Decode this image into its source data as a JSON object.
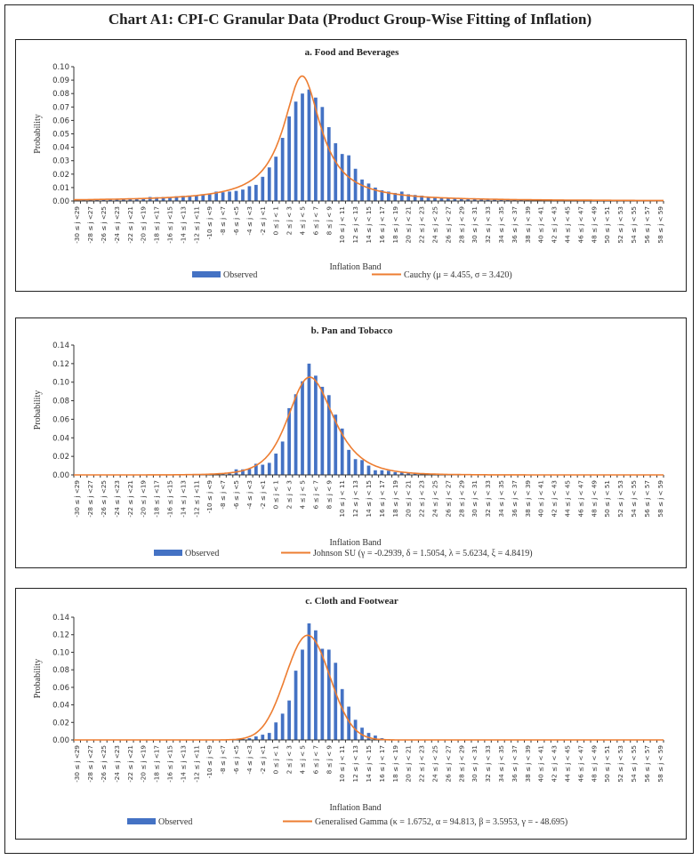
{
  "title": "Chart A1: CPI-C Granular Data (Product Group-Wise Fitting of Inflation)",
  "colors": {
    "bar": "#4472C4",
    "line": "#ED7D31",
    "border": "#222222"
  },
  "chart_data": [
    {
      "type": "bar",
      "title": "a. Food and Beverages",
      "xlabel": "Inflation Band",
      "ylabel": "Probability",
      "ylim": [
        0,
        0.1
      ],
      "yticks": [
        "0.00",
        "0.01",
        "0.02",
        "0.03",
        "0.04",
        "0.05",
        "0.06",
        "0.07",
        "0.08",
        "0.09",
        "0.10"
      ],
      "legend": {
        "bar": "Observed",
        "line": "Cauchy (μ = 4.455, σ = 3.420)",
        "placement": "bottom"
      },
      "fit": {
        "dist": "cauchy",
        "mu": 4.455,
        "sigma": 3.42
      },
      "band_start": -30,
      "values": [
        0.0005,
        0.0006,
        0.0007,
        0.0008,
        0.0009,
        0.001,
        0.0011,
        0.0012,
        0.0013,
        0.0015,
        0.002,
        0.003,
        0.0028,
        0.003,
        0.0025,
        0.0035,
        0.0038,
        0.004,
        0.0042,
        0.005,
        0.0055,
        0.007,
        0.0065,
        0.007,
        0.0075,
        0.0085,
        0.011,
        0.012,
        0.018,
        0.025,
        0.033,
        0.047,
        0.063,
        0.074,
        0.08,
        0.083,
        0.077,
        0.07,
        0.055,
        0.043,
        0.035,
        0.034,
        0.024,
        0.016,
        0.013,
        0.01,
        0.008,
        0.007,
        0.006,
        0.007,
        0.005,
        0.0045,
        0.004,
        0.003,
        0.003,
        0.0025,
        0.002,
        0.0018,
        0.0016,
        0.0015,
        0.0013,
        0.0012,
        0.0011,
        0.001,
        0.001,
        0.0009,
        0.0008,
        0.0008,
        0.0007,
        0.0007,
        0.0006,
        0.0006,
        0.0006,
        0.0005,
        0.0005,
        0.0005,
        0.0005,
        0.0004,
        0.0004,
        0.0004,
        0.0004,
        0.0004,
        0.0003,
        0.0003,
        0.0003,
        0.0003,
        0.0003,
        0.0003,
        0.0003
      ]
    },
    {
      "type": "bar",
      "title": "b. Pan and Tobacco",
      "xlabel": "Inflation Band",
      "ylabel": "Probability",
      "ylim": [
        0,
        0.14
      ],
      "yticks": [
        "0.00",
        "0.02",
        "0.04",
        "0.06",
        "0.08",
        "0.10",
        "0.12",
        "0.14"
      ],
      "legend": {
        "bar": "Observed",
        "line": "Johnson SU (γ = -0.2939, δ = 1.5054, λ = 5.6234, ξ = 4.8419)",
        "placement": "bottom"
      },
      "fit": {
        "dist": "johnsonsu",
        "gamma": -0.2939,
        "delta": 1.5054,
        "lambda": 5.6234,
        "xi": 4.8419
      },
      "band_start": -30,
      "values": [
        0,
        0,
        0,
        0,
        0,
        0,
        0,
        0,
        0,
        0,
        0,
        0,
        0,
        0,
        0,
        0,
        0,
        0,
        0.0003,
        0.0003,
        0.0005,
        0.0008,
        0.001,
        0.0015,
        0.006,
        0.006,
        0.0065,
        0.012,
        0.011,
        0.013,
        0.023,
        0.036,
        0.072,
        0.087,
        0.101,
        0.12,
        0.107,
        0.095,
        0.086,
        0.065,
        0.05,
        0.027,
        0.017,
        0.016,
        0.01,
        0.005,
        0.005,
        0.0045,
        0.003,
        0.0025,
        0.002,
        0.0015,
        0.001,
        0.0008,
        0.0005,
        0.0004,
        0.0003,
        0.0003,
        0.0002,
        0.0002,
        0,
        0,
        0,
        0,
        0,
        0,
        0,
        0,
        0,
        0,
        0,
        0,
        0,
        0,
        0,
        0,
        0,
        0,
        0,
        0,
        0,
        0,
        0,
        0,
        0,
        0,
        0,
        0,
        0
      ]
    },
    {
      "type": "bar",
      "title": "c. Cloth and Footwear",
      "xlabel": "Inflation Band",
      "ylabel": "Probability",
      "ylim": [
        0,
        0.14
      ],
      "yticks": [
        "0.00",
        "0.02",
        "0.04",
        "0.06",
        "0.08",
        "0.10",
        "0.12",
        "0.14"
      ],
      "legend": {
        "bar": "Observed",
        "line": "Generalised Gamma (κ = 1.6752, α = 94.813, β = 3.5953,  γ = - 48.695)",
        "placement": "bottom"
      },
      "fit": {
        "dist": "gengamma",
        "kappa": 1.6752,
        "alpha": 94.813,
        "beta": 3.5953,
        "gamma": -48.695
      },
      "band_start": -30,
      "values": [
        0,
        0,
        0,
        0,
        0,
        0,
        0,
        0,
        0,
        0,
        0,
        0,
        0,
        0,
        0,
        0,
        0,
        0,
        0,
        0,
        0,
        0,
        0,
        0.0003,
        0.0005,
        0.001,
        0.002,
        0.004,
        0.006,
        0.008,
        0.02,
        0.03,
        0.045,
        0.079,
        0.103,
        0.133,
        0.125,
        0.104,
        0.103,
        0.088,
        0.058,
        0.038,
        0.023,
        0.014,
        0.008,
        0.005,
        0.002,
        0.001,
        0.0005,
        0.0003,
        0,
        0,
        0,
        0,
        0,
        0,
        0,
        0,
        0,
        0,
        0,
        0,
        0,
        0,
        0,
        0,
        0,
        0,
        0,
        0,
        0,
        0,
        0,
        0,
        0,
        0,
        0,
        0,
        0,
        0,
        0,
        0,
        0,
        0,
        0,
        0,
        0,
        0,
        0
      ]
    }
  ],
  "x_tick_labels": [
    "-30 ≤ j <29",
    "-28 ≤ j <27",
    "-26 ≤ j <25",
    "-24 ≤ j <23",
    "-22 ≤ j <21",
    "-20 ≤ j <19",
    "-18 ≤ j <17",
    "-16 ≤ j <15",
    "-14 ≤ j <13",
    "-12 ≤ j <11",
    "-10 ≤ j <9",
    "-8 ≤ j <7",
    "-6 ≤ j <5",
    "-4 ≤ j <3",
    "-2 ≤ j <1",
    "0 ≤ j < 1",
    "2 ≤ j < 3",
    "4 ≤ j < 5",
    "6 ≤ j < 7",
    "8 ≤ j < 9",
    "10 ≤ j < 11",
    "12 ≤ j < 13",
    "14 ≤ j < 15",
    "16 ≤ j < 17",
    "18 ≤ j < 19",
    "20 ≤ j < 21",
    "22 ≤ j < 23",
    "24 ≤ j < 25",
    "26 ≤ j < 27",
    "28 ≤ j < 29",
    "30 ≤ j < 31",
    "32 ≤ j < 33",
    "34 ≤ j < 35",
    "36 ≤ j < 37",
    "38 ≤ j < 39",
    "40 ≤ j < 41",
    "42 ≤ j < 43",
    "44 ≤ j < 45",
    "46 ≤ j < 47",
    "48 ≤ j < 49",
    "50 ≤ j < 51",
    "52 ≤ j < 53",
    "54 ≤ j < 55",
    "56 ≤ j < 57",
    "58 ≤ j < 59"
  ]
}
